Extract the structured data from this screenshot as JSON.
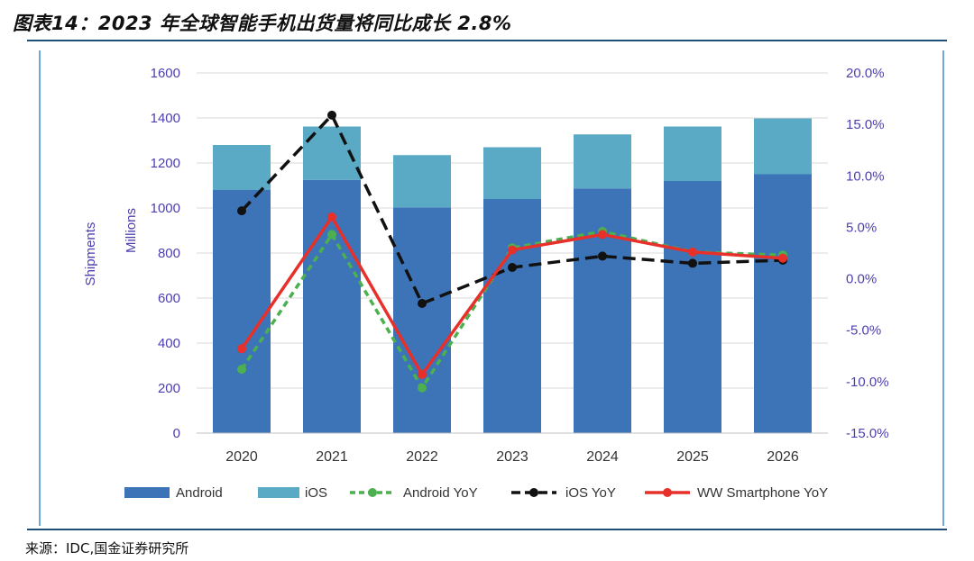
{
  "figure": {
    "title": "图表14：2023 年全球智能手机出货量将同比成长 2.8%",
    "source": "来源：IDC,国金证券研究所"
  },
  "colors": {
    "android": "#3d74b8",
    "ios": "#5aa9c5",
    "android_yoy": "#4caf50",
    "ios_yoy": "#111111",
    "ww_yoy": "#e8302a",
    "tick_text": "#4b3fb0",
    "grid": "#d9d9d9"
  },
  "chart_data": {
    "type": "bar",
    "stacked": true,
    "categories": [
      "2020",
      "2021",
      "2022",
      "2023",
      "2024",
      "2025",
      "2026"
    ],
    "series": [
      {
        "name": "Android",
        "kind": "bar",
        "axis": "left",
        "values": [
          1080,
          1125,
          1003,
          1040,
          1087,
          1120,
          1150
        ]
      },
      {
        "name": "iOS",
        "kind": "bar",
        "axis": "left",
        "values": [
          200,
          237,
          232,
          230,
          240,
          242,
          248
        ]
      },
      {
        "name": "Android YoY",
        "kind": "line",
        "style": "dashed",
        "axis": "right",
        "values": [
          -8.8,
          4.3,
          -10.6,
          3.0,
          4.6,
          2.6,
          2.3
        ]
      },
      {
        "name": "iOS YoY",
        "kind": "line",
        "style": "dashed",
        "axis": "right",
        "values": [
          6.6,
          15.9,
          -2.4,
          1.1,
          2.2,
          1.5,
          1.8
        ]
      },
      {
        "name": "WW Smartphone YoY",
        "kind": "line",
        "style": "solid",
        "axis": "right",
        "values": [
          -6.8,
          6.0,
          -9.3,
          2.8,
          4.3,
          2.6,
          2.0
        ]
      }
    ],
    "ylabel": "Shipments\nMillions",
    "ylabel_lines": [
      "Shipments",
      "Millions"
    ],
    "ylim": [
      0,
      1600
    ],
    "yticks": [
      "0",
      "200",
      "400",
      "600",
      "800",
      "1000",
      "1200",
      "1400",
      "1600"
    ],
    "y2lim": [
      -15,
      20
    ],
    "y2ticks": [
      "-15.0%",
      "-10.0%",
      "-5.0%",
      "0.0%",
      "5.0%",
      "10.0%",
      "15.0%",
      "20.0%"
    ],
    "grid": true,
    "legend_position": "bottom"
  }
}
